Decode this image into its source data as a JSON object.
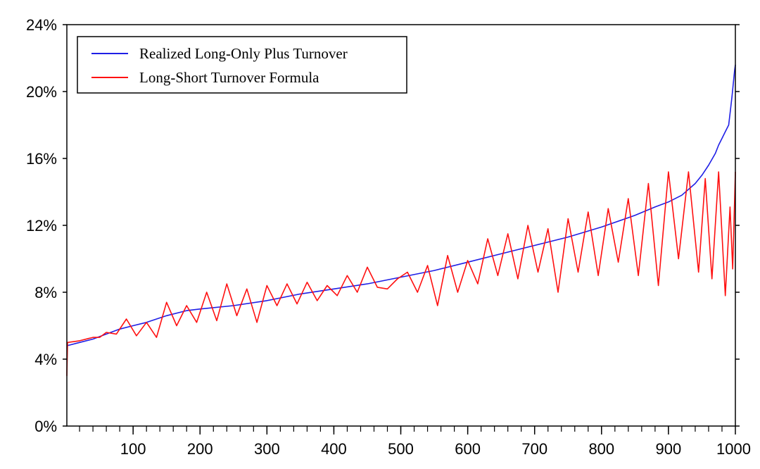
{
  "chart_data": {
    "type": "line",
    "title": "",
    "xlabel": "",
    "ylabel": "",
    "xlim": [
      1,
      1000
    ],
    "ylim": [
      0,
      0.24
    ],
    "x_ticks": [
      100,
      200,
      300,
      400,
      500,
      600,
      700,
      800,
      900,
      1000
    ],
    "x_tick_labels": [
      "100",
      "200",
      "300",
      "400",
      "500",
      "600",
      "700",
      "800",
      "900",
      "1000"
    ],
    "y_ticks": [
      0,
      0.04,
      0.08,
      0.12,
      0.16,
      0.2,
      0.24
    ],
    "y_tick_labels": [
      "0%",
      "4%",
      "8%",
      "12%",
      "16%",
      "20%",
      "24%"
    ],
    "minor_x_tick_step": 20,
    "grid": false,
    "legend_position": "top-left",
    "series": [
      {
        "name": "Realized Long-Only Plus Turnover",
        "color": "#1f1fe6",
        "x": [
          1,
          20,
          40,
          60,
          80,
          100,
          120,
          150,
          180,
          200,
          250,
          300,
          350,
          400,
          450,
          500,
          550,
          600,
          650,
          700,
          750,
          800,
          850,
          880,
          900,
          920,
          940,
          950,
          960,
          970,
          975,
          980,
          985,
          990,
          993,
          995,
          997,
          999,
          1000
        ],
        "y": [
          0.048,
          0.05,
          0.052,
          0.055,
          0.058,
          0.06,
          0.062,
          0.066,
          0.069,
          0.07,
          0.072,
          0.075,
          0.079,
          0.082,
          0.085,
          0.089,
          0.093,
          0.098,
          0.103,
          0.108,
          0.113,
          0.119,
          0.126,
          0.131,
          0.134,
          0.138,
          0.145,
          0.15,
          0.156,
          0.163,
          0.168,
          0.172,
          0.176,
          0.18,
          0.19,
          0.197,
          0.205,
          0.213,
          0.216
        ]
      },
      {
        "name": "Long-Short Turnover Formula",
        "color": "#ff1010",
        "x": [
          1,
          2,
          20,
          40,
          50,
          60,
          75,
          90,
          105,
          120,
          135,
          150,
          165,
          180,
          195,
          210,
          225,
          240,
          255,
          270,
          285,
          300,
          315,
          330,
          345,
          360,
          375,
          390,
          405,
          420,
          435,
          450,
          465,
          480,
          495,
          510,
          525,
          540,
          555,
          570,
          585,
          600,
          615,
          630,
          645,
          660,
          675,
          690,
          705,
          720,
          735,
          750,
          765,
          780,
          795,
          810,
          825,
          840,
          855,
          870,
          885,
          900,
          915,
          930,
          945,
          955,
          965,
          975,
          985,
          992,
          996,
          1000
        ],
        "y": [
          0.03,
          0.05,
          0.051,
          0.053,
          0.053,
          0.056,
          0.055,
          0.064,
          0.054,
          0.062,
          0.053,
          0.074,
          0.06,
          0.072,
          0.062,
          0.08,
          0.063,
          0.085,
          0.066,
          0.082,
          0.062,
          0.084,
          0.072,
          0.085,
          0.073,
          0.086,
          0.075,
          0.084,
          0.078,
          0.09,
          0.08,
          0.095,
          0.083,
          0.082,
          0.088,
          0.092,
          0.08,
          0.096,
          0.072,
          0.102,
          0.08,
          0.099,
          0.085,
          0.112,
          0.09,
          0.115,
          0.088,
          0.12,
          0.092,
          0.118,
          0.08,
          0.124,
          0.092,
          0.128,
          0.09,
          0.13,
          0.098,
          0.136,
          0.09,
          0.145,
          0.084,
          0.152,
          0.1,
          0.152,
          0.092,
          0.148,
          0.088,
          0.152,
          0.078,
          0.131,
          0.094,
          0.152
        ]
      }
    ]
  }
}
